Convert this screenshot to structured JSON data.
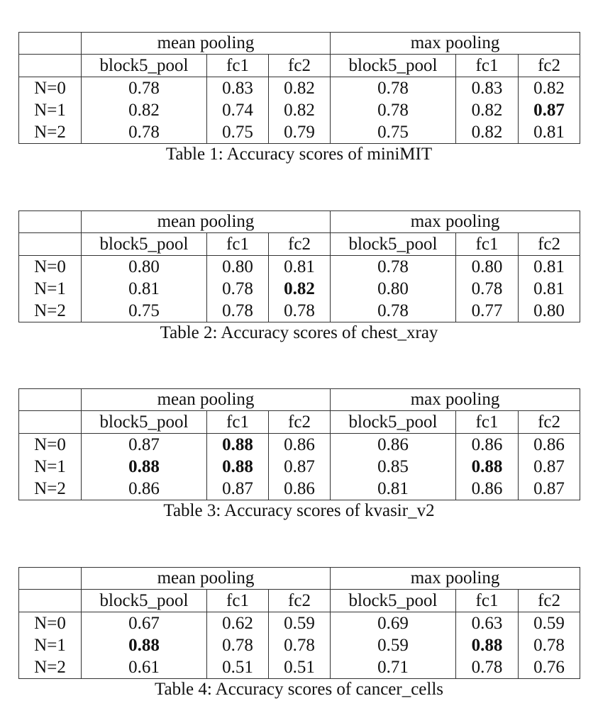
{
  "tables": [
    {
      "groups": [
        "mean pooling",
        "max pooling"
      ],
      "columns": [
        "block5_pool",
        "fc1",
        "fc2",
        "block5_pool",
        "fc1",
        "fc2"
      ],
      "rows": [
        {
          "label": "N=0",
          "values": [
            "0.78",
            "0.83",
            "0.82",
            "0.78",
            "0.83",
            "0.82"
          ],
          "bold": [
            false,
            false,
            false,
            false,
            false,
            false
          ]
        },
        {
          "label": "N=1",
          "values": [
            "0.82",
            "0.74",
            "0.82",
            "0.78",
            "0.82",
            "0.87"
          ],
          "bold": [
            false,
            false,
            false,
            false,
            false,
            true
          ]
        },
        {
          "label": "N=2",
          "values": [
            "0.78",
            "0.75",
            "0.79",
            "0.75",
            "0.82",
            "0.81"
          ],
          "bold": [
            false,
            false,
            false,
            false,
            false,
            false
          ]
        }
      ],
      "caption": "Table 1: Accuracy scores of miniMIT"
    },
    {
      "groups": [
        "mean pooling",
        "max pooling"
      ],
      "columns": [
        "block5_pool",
        "fc1",
        "fc2",
        "block5_pool",
        "fc1",
        "fc2"
      ],
      "rows": [
        {
          "label": "N=0",
          "values": [
            "0.80",
            "0.80",
            "0.81",
            "0.78",
            "0.80",
            "0.81"
          ],
          "bold": [
            false,
            false,
            false,
            false,
            false,
            false
          ]
        },
        {
          "label": "N=1",
          "values": [
            "0.81",
            "0.78",
            "0.82",
            "0.80",
            "0.78",
            "0.81"
          ],
          "bold": [
            false,
            false,
            true,
            false,
            false,
            false
          ]
        },
        {
          "label": "N=2",
          "values": [
            "0.75",
            "0.78",
            "0.78",
            "0.78",
            "0.77",
            "0.80"
          ],
          "bold": [
            false,
            false,
            false,
            false,
            false,
            false
          ]
        }
      ],
      "caption": "Table 2: Accuracy scores of chest_xray"
    },
    {
      "groups": [
        "mean pooling",
        "max pooling"
      ],
      "columns": [
        "block5_pool",
        "fc1",
        "fc2",
        "block5_pool",
        "fc1",
        "fc2"
      ],
      "rows": [
        {
          "label": "N=0",
          "values": [
            "0.87",
            "0.88",
            "0.86",
            "0.86",
            "0.86",
            "0.86"
          ],
          "bold": [
            false,
            true,
            false,
            false,
            false,
            false
          ]
        },
        {
          "label": "N=1",
          "values": [
            "0.88",
            "0.88",
            "0.87",
            "0.85",
            "0.88",
            "0.87"
          ],
          "bold": [
            true,
            true,
            false,
            false,
            true,
            false
          ]
        },
        {
          "label": "N=2",
          "values": [
            "0.86",
            "0.87",
            "0.86",
            "0.81",
            "0.86",
            "0.87"
          ],
          "bold": [
            false,
            false,
            false,
            false,
            false,
            false
          ]
        }
      ],
      "caption": "Table 3: Accuracy scores of kvasir_v2"
    },
    {
      "groups": [
        "mean pooling",
        "max pooling"
      ],
      "columns": [
        "block5_pool",
        "fc1",
        "fc2",
        "block5_pool",
        "fc1",
        "fc2"
      ],
      "rows": [
        {
          "label": "N=0",
          "values": [
            "0.67",
            "0.62",
            "0.59",
            "0.69",
            "0.63",
            "0.59"
          ],
          "bold": [
            false,
            false,
            false,
            false,
            false,
            false
          ]
        },
        {
          "label": "N=1",
          "values": [
            "0.88",
            "0.78",
            "0.78",
            "0.59",
            "0.88",
            "0.78"
          ],
          "bold": [
            true,
            false,
            false,
            false,
            true,
            false
          ]
        },
        {
          "label": "N=2",
          "values": [
            "0.61",
            "0.51",
            "0.51",
            "0.71",
            "0.78",
            "0.76"
          ],
          "bold": [
            false,
            false,
            false,
            false,
            false,
            false
          ]
        }
      ],
      "caption": "Table 4: Accuracy scores of cancer_cells"
    }
  ]
}
